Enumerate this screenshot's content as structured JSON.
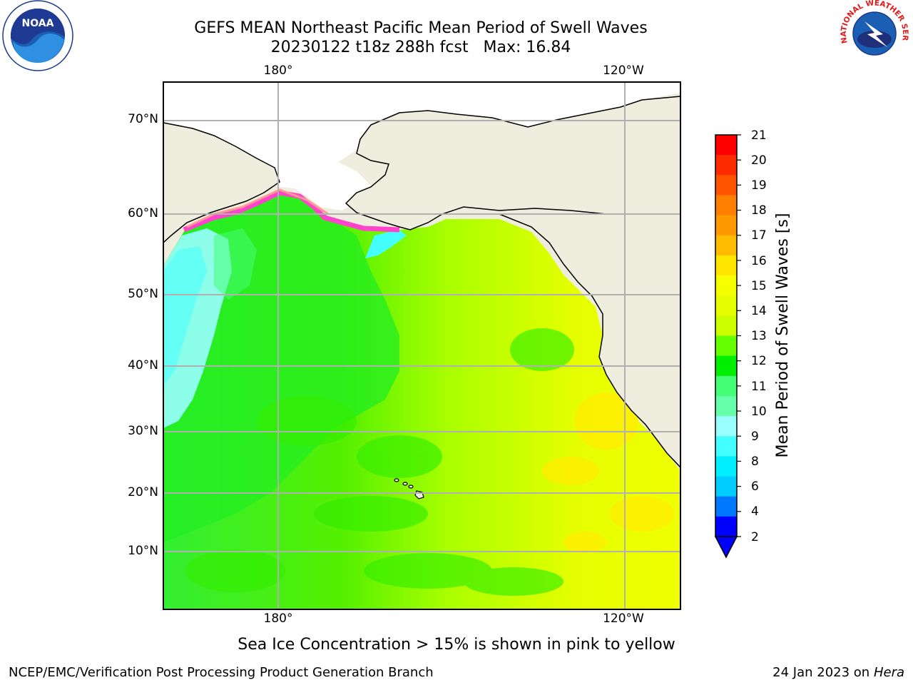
{
  "title": {
    "line1": "GEFS MEAN Northeast Pacific Mean Period of Swell Waves",
    "line2": "20230122 t18z 288h fcst   Max: 16.84"
  },
  "map": {
    "lat_labels": [
      "70°N",
      "60°N",
      "50°N",
      "40°N",
      "30°N",
      "20°N",
      "10°N"
    ],
    "lon_labels_top": [
      "180°",
      "120°W"
    ],
    "lon_labels_bottom": [
      "180°",
      "120°W"
    ],
    "colors": {
      "land": "#efeddd",
      "ocean_dominant": "#ccff00",
      "grid": "#b0b0b0"
    }
  },
  "colorbar": {
    "title": "Mean Period of Swell Waves [s]",
    "ticks": [
      "21",
      "20",
      "19",
      "18",
      "17",
      "16",
      "15",
      "14",
      "13",
      "12",
      "11",
      "10",
      "9",
      "8",
      "6",
      "4",
      "2"
    ],
    "colors": [
      "#ff0000",
      "#ff2b00",
      "#ff5500",
      "#ff8000",
      "#ff9900",
      "#ffbb00",
      "#ffe600",
      "#f5ff00",
      "#e6ff00",
      "#ccff00",
      "#66ff00",
      "#00ee00",
      "#44ff77",
      "#66ffaa",
      "#99ffff",
      "#44ffff",
      "#00eeff",
      "#00ccff",
      "#0077ff",
      "#0000ff"
    ]
  },
  "footnote": "Sea Ice Concentration > 15% is shown in pink to yellow",
  "credits": {
    "left": "NCEP/EMC/Verification Post Processing Product Generation Branch",
    "right_date": "24 Jan 2023 on ",
    "right_host": "Hera"
  },
  "logos": {
    "left_icon": "noaa-logo",
    "right_icon": "nws-logo",
    "noaa_text": "NOAA",
    "nws_text": "NATIONAL WEATHER SERVICE"
  }
}
